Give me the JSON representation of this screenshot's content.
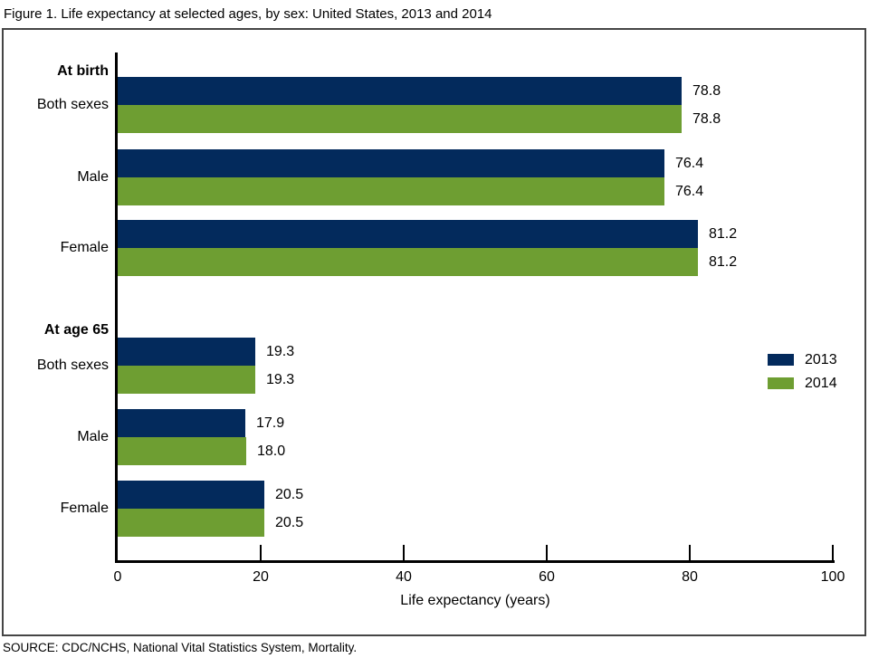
{
  "title": "Figure 1. Life expectancy at selected ages, by sex: United States, 2013 and 2014",
  "source_note": "SOURCE: CDC/NCHS, National Vital Statistics System, Mortality.",
  "colors": {
    "series_2013": "#032a5c",
    "series_2014": "#6e9e32",
    "axis": "#000000",
    "frame_border": "#454545",
    "text": "#000000"
  },
  "legend": {
    "items": [
      {
        "label": "2013",
        "color": "#032a5c"
      },
      {
        "label": "2014",
        "color": "#6e9e32"
      }
    ]
  },
  "chart_data": {
    "type": "bar",
    "orientation": "horizontal",
    "title": "Figure 1. Life expectancy at selected ages, by sex: United States, 2013 and 2014",
    "xlabel": "Life expectancy (years)",
    "ylabel": "",
    "xlim": [
      0,
      100
    ],
    "xticks": [
      0,
      20,
      40,
      60,
      80,
      100
    ],
    "xtick_labels": [
      "0",
      "20",
      "40",
      "60",
      "80",
      "100"
    ],
    "grid": false,
    "value_labels_shown": true,
    "legend_position": "middle-right",
    "groups": [
      {
        "label": "At birth",
        "categories": [
          "Both sexes",
          "Male",
          "Female"
        ],
        "series": [
          {
            "name": "2013",
            "values": [
              78.8,
              76.4,
              81.2
            ],
            "value_labels": [
              "78.8",
              "76.4",
              "81.2"
            ]
          },
          {
            "name": "2014",
            "values": [
              78.8,
              76.4,
              81.2
            ],
            "value_labels": [
              "78.8",
              "76.4",
              "81.2"
            ]
          }
        ]
      },
      {
        "label": "At age 65",
        "categories": [
          "Both sexes",
          "Male",
          "Female"
        ],
        "series": [
          {
            "name": "2013",
            "values": [
              19.3,
              17.9,
              20.5
            ],
            "value_labels": [
              "19.3",
              "17.9",
              "20.5"
            ]
          },
          {
            "name": "2014",
            "values": [
              19.3,
              18.0,
              20.5
            ],
            "value_labels": [
              "19.3",
              "18.0",
              "20.5"
            ]
          }
        ]
      }
    ]
  }
}
